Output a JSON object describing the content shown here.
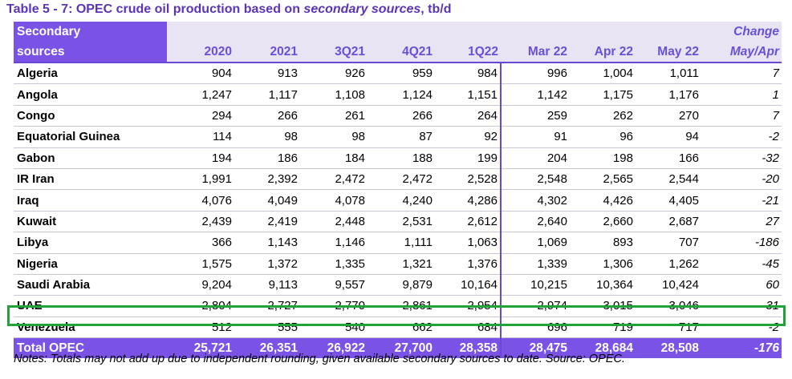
{
  "title": {
    "prefix": "Table 5 - 7: OPEC crude oil production based on ",
    "emphasis": "secondary sources",
    "suffix": ", tb/d"
  },
  "header": {
    "row1": {
      "first": "Secondary",
      "change": "Change"
    },
    "row2": {
      "first": "sources",
      "change": "May/Apr"
    },
    "columns": [
      "2020",
      "2021",
      "3Q21",
      "4Q21",
      "1Q22",
      "Mar 22",
      "Apr 22",
      "May 22"
    ]
  },
  "rows": [
    {
      "name": "Algeria",
      "values": [
        "904",
        "913",
        "926",
        "959",
        "984",
        "996",
        "1,004",
        "1,011"
      ],
      "change": "7"
    },
    {
      "name": "Angola",
      "values": [
        "1,247",
        "1,117",
        "1,108",
        "1,124",
        "1,151",
        "1,142",
        "1,175",
        "1,176"
      ],
      "change": "1"
    },
    {
      "name": "Congo",
      "values": [
        "294",
        "266",
        "261",
        "266",
        "264",
        "259",
        "262",
        "270"
      ],
      "change": "7"
    },
    {
      "name": "Equatorial Guinea",
      "values": [
        "114",
        "98",
        "98",
        "87",
        "92",
        "91",
        "96",
        "94"
      ],
      "change": "-2"
    },
    {
      "name": "Gabon",
      "values": [
        "194",
        "186",
        "184",
        "188",
        "199",
        "204",
        "198",
        "166"
      ],
      "change": "-32"
    },
    {
      "name": "IR Iran",
      "values": [
        "1,991",
        "2,392",
        "2,472",
        "2,472",
        "2,528",
        "2,548",
        "2,565",
        "2,544"
      ],
      "change": "-20"
    },
    {
      "name": "Iraq",
      "values": [
        "4,076",
        "4,049",
        "4,078",
        "4,240",
        "4,286",
        "4,302",
        "4,426",
        "4,405"
      ],
      "change": "-21"
    },
    {
      "name": "Kuwait",
      "values": [
        "2,439",
        "2,419",
        "2,448",
        "2,531",
        "2,612",
        "2,640",
        "2,660",
        "2,687"
      ],
      "change": "27"
    },
    {
      "name": "Libya",
      "values": [
        "366",
        "1,143",
        "1,146",
        "1,111",
        "1,063",
        "1,069",
        "893",
        "707"
      ],
      "change": "-186"
    },
    {
      "name": "Nigeria",
      "values": [
        "1,575",
        "1,372",
        "1,335",
        "1,321",
        "1,376",
        "1,339",
        "1,306",
        "1,262"
      ],
      "change": "-45"
    },
    {
      "name": "Saudi Arabia",
      "values": [
        "9,204",
        "9,113",
        "9,557",
        "9,879",
        "10,164",
        "10,215",
        "10,364",
        "10,424"
      ],
      "change": "60"
    },
    {
      "name": "UAE",
      "values": [
        "2,804",
        "2,727",
        "2,770",
        "2,861",
        "2,954",
        "2,974",
        "3,015",
        "3,046"
      ],
      "change": "31"
    },
    {
      "name": "Venezuela",
      "values": [
        "512",
        "555",
        "540",
        "662",
        "684",
        "696",
        "719",
        "717"
      ],
      "change": "-2"
    }
  ],
  "total": {
    "name": "Total  OPEC",
    "values": [
      "25,721",
      "26,351",
      "26,922",
      "27,700",
      "28,358",
      "28,475",
      "28,684",
      "28,508"
    ],
    "change": "-176"
  },
  "notes": "Notes: Totals may not add up due to independent rounding, given available secondary sources to date. Source: OPEC.",
  "colors": {
    "accent": "#7b52e6",
    "title": "#5b35b6",
    "highlight": "#22a33a"
  }
}
